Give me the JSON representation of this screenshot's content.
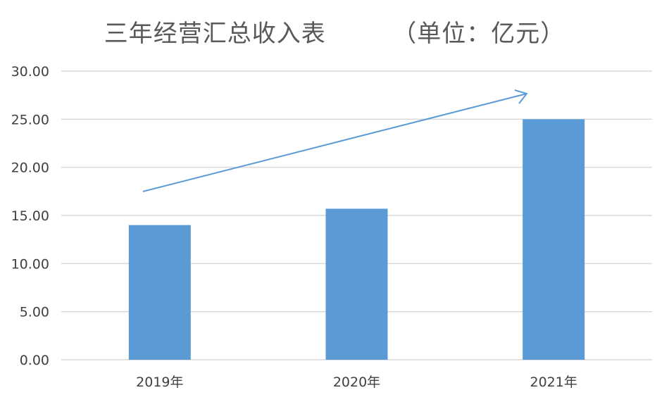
{
  "chart_data": {
    "type": "bar",
    "title": "三年经营汇总收入表        （单位：亿元）",
    "categories": [
      "2019年",
      "2020年",
      "2021年"
    ],
    "values": [
      14.0,
      15.7,
      25.0
    ],
    "ylim": [
      0,
      30
    ],
    "yticks": [
      "0.00",
      "5.00",
      "10.00",
      "15.00",
      "20.00",
      "25.00",
      "30.00"
    ],
    "grid": true,
    "legend": "none",
    "colors": {
      "bar": "#5B9BD5",
      "arrow": "#5B9BD5",
      "grid": "#D9D9D9",
      "axis_text": "#404040"
    },
    "annotations": [
      {
        "type": "trend-arrow",
        "icon": "upward-trend-arrow"
      }
    ]
  }
}
